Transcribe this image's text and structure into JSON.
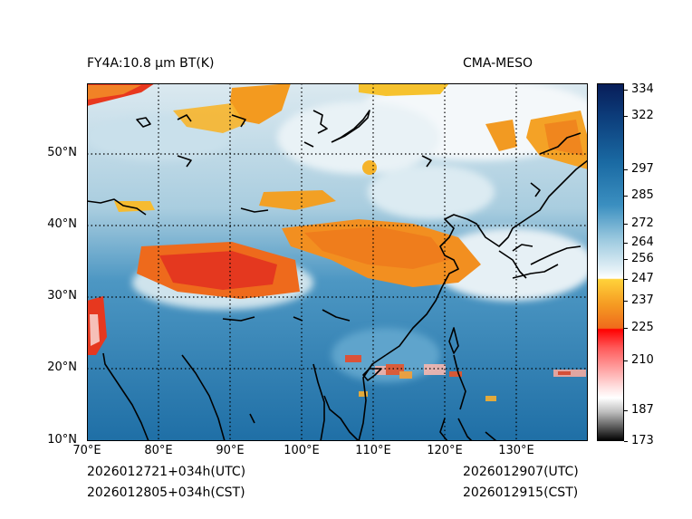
{
  "header": {
    "left_title": "FY4A:10.8 µm BT(K)",
    "right_title": "CMA-MESO"
  },
  "map": {
    "lon_labels": [
      "70°E",
      "80°E",
      "90°E",
      "100°E",
      "110°E",
      "120°E",
      "130°E"
    ],
    "lat_labels": [
      "50°N",
      "40°N",
      "30°N",
      "20°N",
      "10°N"
    ]
  },
  "colorbar": {
    "tick_labels": [
      "334",
      "322",
      "297",
      "285",
      "272",
      "264",
      "256",
      "247",
      "237",
      "225",
      "210",
      "187",
      "173"
    ]
  },
  "footer": {
    "init_utc": "2026012721+034h(UTC)",
    "init_cst": "2026012805+034h(CST)",
    "valid_utc": "2026012907(UTC)",
    "valid_cst": "2026012915(CST)"
  },
  "colors": {
    "ocean_blue": "#2a7fb4",
    "cloud_white": "#f2f6f8",
    "cold_orange": "#f08a1e",
    "very_cold_red": "#e02020",
    "coastline": "#000000"
  }
}
